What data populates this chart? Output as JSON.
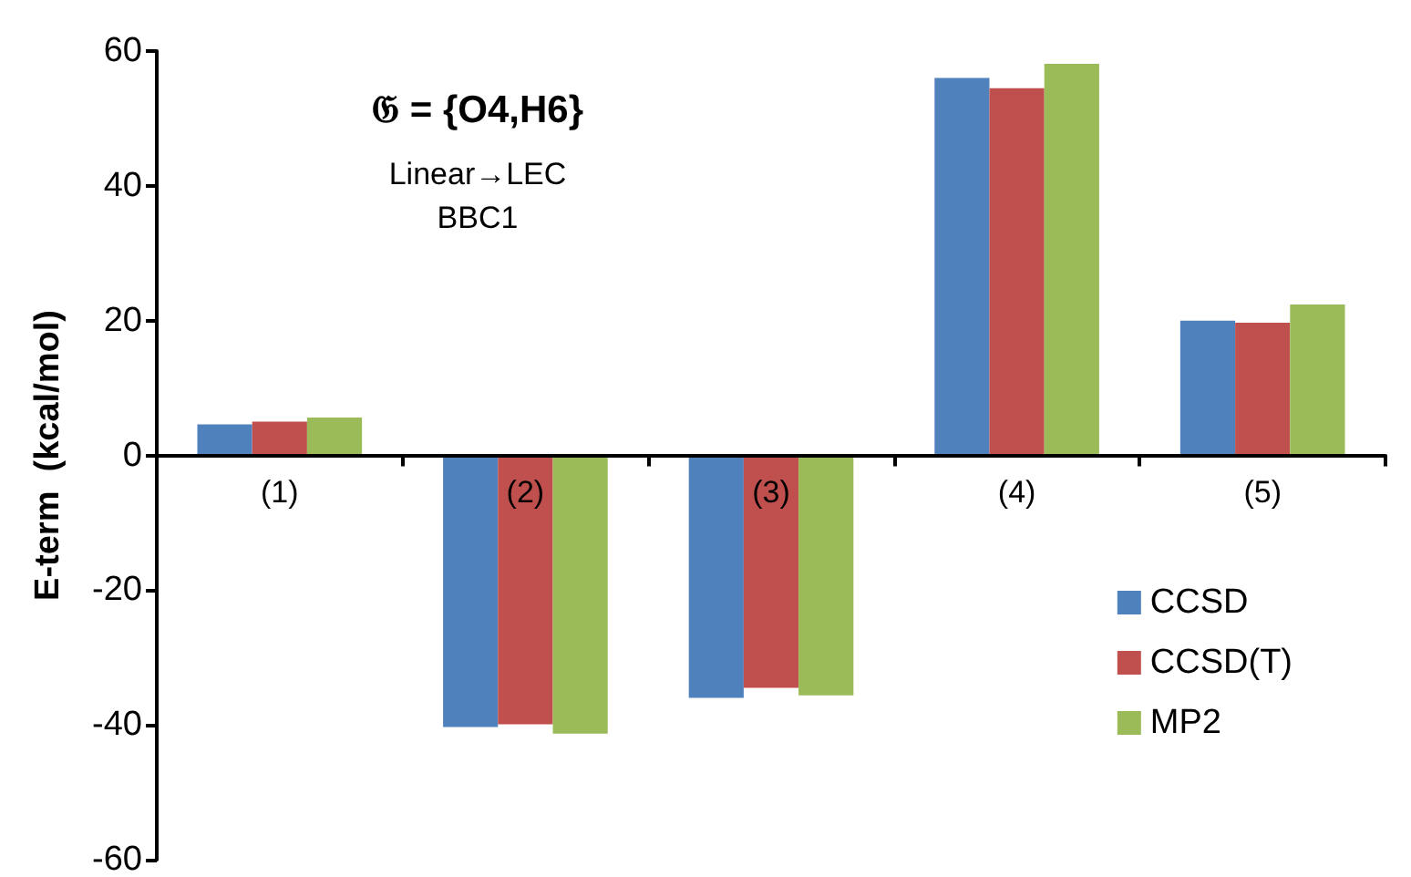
{
  "chart_data": {
    "type": "bar",
    "title": "𝔊 = {O4,H6}",
    "ylabel": "E-term  (kcal/mol)",
    "annotations": [
      "Linear→LEC",
      "BBC1"
    ],
    "categories": [
      "(1)",
      "(2)",
      "(3)",
      "(4)",
      "(5)"
    ],
    "series": [
      {
        "name": "CCSD",
        "color": "#4f81bd",
        "values": [
          4.6,
          -40.3,
          -36.0,
          56.0,
          20.0
        ]
      },
      {
        "name": "CCSD(T)",
        "color": "#c0504d",
        "values": [
          5.0,
          -39.9,
          -34.5,
          54.5,
          19.7
        ]
      },
      {
        "name": "MP2",
        "color": "#9bbb59",
        "values": [
          5.6,
          -41.3,
          -35.6,
          58.1,
          22.4
        ]
      }
    ],
    "ylim": [
      -60,
      60
    ],
    "yticks": [
      -60,
      -40,
      -20,
      0,
      20,
      40,
      60
    ],
    "legend": "bottom right"
  }
}
